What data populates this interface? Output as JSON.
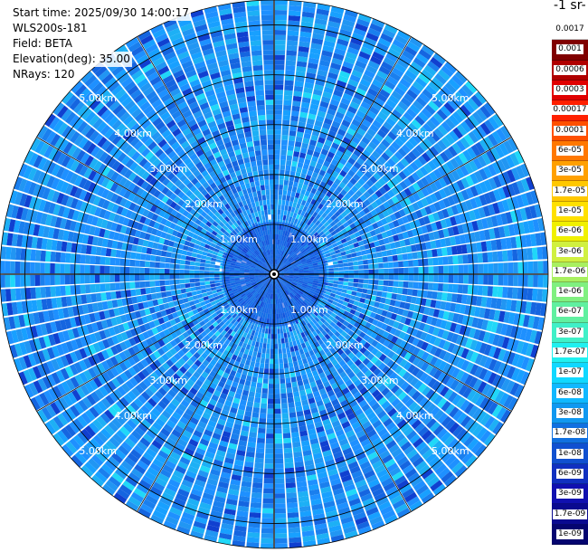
{
  "header": {
    "start_time": "Start time: 2025/09/30 14:00:17",
    "instrument": "WLS200s-181",
    "field": "Field: BETA",
    "elevation": "Elevation(deg): 35.00",
    "nrays": "NRays: 120"
  },
  "units_label": "-1 sr-",
  "chart_data": {
    "type": "heatmap",
    "projection": "polar-ppi",
    "field": "BETA",
    "elevation_deg": 35.0,
    "n_rays": 120,
    "max_range_km": 5.5,
    "range_ring_labels_km": [
      "1.00km",
      "2.00km",
      "3.00km",
      "4.00km",
      "5.00km"
    ],
    "range_rings_km": [
      1,
      2,
      3,
      4,
      5
    ],
    "dominant_value_range": [
      "1e-08",
      "6e-08"
    ],
    "colorbar": {
      "ticks": [
        "0.0017",
        "0.001",
        "0.0006",
        "0.0003",
        "0.00017",
        "0.0001",
        "6e-05",
        "3e-05",
        "1.7e-05",
        "1e-05",
        "6e-06",
        "3e-06",
        "1.7e-06",
        "1e-06",
        "6e-07",
        "3e-07",
        "1.7e-07",
        "1e-07",
        "6e-08",
        "3e-08",
        "1.7e-08",
        "1e-08",
        "6e-09",
        "3e-09",
        "1.7e-09",
        "1e-09"
      ],
      "colors": [
        "#ffffff",
        "#800000",
        "#b00000",
        "#e00000",
        "#ff2000",
        "#ff5000",
        "#ff7800",
        "#ffa000",
        "#ffc800",
        "#ffe000",
        "#f0f000",
        "#d0f040",
        "#a8f060",
        "#80f080",
        "#60f0a0",
        "#40f0c8",
        "#20f0f0",
        "#10d8ff",
        "#10b8ff",
        "#1098f0",
        "#1070e0",
        "#1050d0",
        "#1030c0",
        "#1010b0",
        "#0a0a90",
        "#050570"
      ],
      "legend_position": "right"
    },
    "grid": true
  }
}
